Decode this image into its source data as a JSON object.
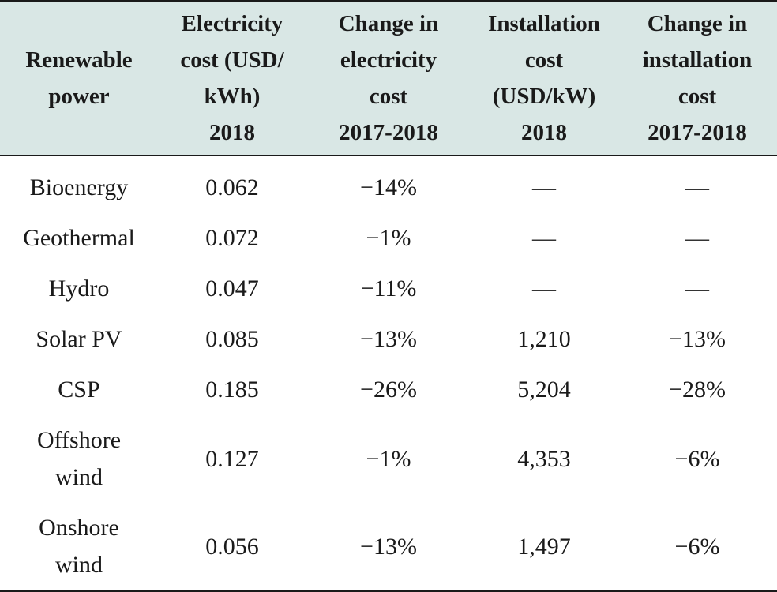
{
  "table": {
    "headers": [
      [
        "Renewable",
        "power"
      ],
      [
        "Electricity",
        "cost (USD/",
        "kWh)",
        "2018"
      ],
      [
        "Change in",
        "electricity",
        "cost",
        "2017-2018"
      ],
      [
        "Installation",
        "cost",
        "(USD/kW)",
        "2018"
      ],
      [
        "Change in",
        "installation",
        "cost",
        "2017-2018"
      ]
    ],
    "rows": [
      {
        "power": [
          "Bioenergy"
        ],
        "elec_cost": "0.062",
        "elec_change": "−14%",
        "install_cost": "—",
        "install_change": "—"
      },
      {
        "power": [
          "Geothermal"
        ],
        "elec_cost": "0.072",
        "elec_change": "−1%",
        "install_cost": "—",
        "install_change": "—"
      },
      {
        "power": [
          "Hydro"
        ],
        "elec_cost": "0.047",
        "elec_change": "−11%",
        "install_cost": "—",
        "install_change": "—"
      },
      {
        "power": [
          "Solar PV"
        ],
        "elec_cost": "0.085",
        "elec_change": "−13%",
        "install_cost": "1,210",
        "install_change": "−13%"
      },
      {
        "power": [
          "CSP"
        ],
        "elec_cost": "0.185",
        "elec_change": "−26%",
        "install_cost": "5,204",
        "install_change": "−28%"
      },
      {
        "power": [
          "Offshore",
          "wind"
        ],
        "elec_cost": "0.127",
        "elec_change": "−1%",
        "install_cost": "4,353",
        "install_change": "−6%"
      },
      {
        "power": [
          "Onshore",
          "wind"
        ],
        "elec_cost": "0.056",
        "elec_change": "−13%",
        "install_cost": "1,497",
        "install_change": "−6%"
      }
    ]
  }
}
